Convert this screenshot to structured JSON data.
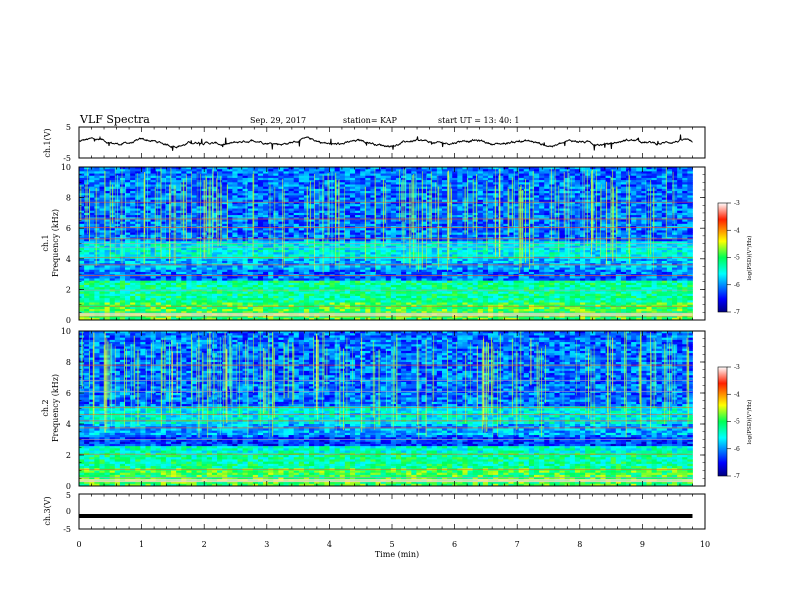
{
  "header": {
    "title": "VLF Spectra",
    "date": "Sep. 29, 2017",
    "station": "station= KAP",
    "start": "start  UT =   13: 40: 1"
  },
  "chart_data": [
    {
      "type": "line",
      "panel": "ch1-waveform",
      "ylabel": "ch.1(V)",
      "yticks": [
        "5",
        "-5"
      ],
      "ylim": [
        -5,
        5
      ],
      "xlim": [
        0,
        10
      ],
      "description_values": "Noisy waveform around 0 V, amplitude roughly within ±1.5 V, ending near 9.8 min"
    },
    {
      "type": "heatmap",
      "panel": "ch1-spectrogram",
      "ylabel": "ch.1\nFrequency (kHz)",
      "ylabel_line1": "ch.1",
      "ylabel_line2": "Frequency (kHz)",
      "yticks": [
        "0",
        "2",
        "4",
        "6",
        "8",
        "10"
      ],
      "ylim": [
        0,
        10
      ],
      "xlim": [
        0,
        9.8
      ],
      "colorbar": {
        "label": "log(PSD)(V²/Hz)",
        "ticks": [
          "-3",
          "-4",
          "-5",
          "-6",
          "-7"
        ],
        "range": [
          -7,
          -3
        ]
      }
    },
    {
      "type": "heatmap",
      "panel": "ch2-spectrogram",
      "ylabel_line1": "ch.2",
      "ylabel_line2": "Frequency (kHz)",
      "yticks": [
        "0",
        "2",
        "4",
        "6",
        "8",
        "10"
      ],
      "ylim": [
        0,
        10
      ],
      "xlim": [
        0,
        9.8
      ],
      "colorbar": {
        "label": "log(PSD)(V²/Hz)",
        "ticks": [
          "-3",
          "-4",
          "-5",
          "-6",
          "-7"
        ],
        "range": [
          -7,
          -3
        ]
      }
    },
    {
      "type": "line",
      "panel": "ch3-waveform",
      "ylabel": "ch.3(V)",
      "yticks": [
        "5",
        "0",
        "-5"
      ],
      "ylim": [
        -5,
        5
      ],
      "xlim": [
        0,
        10
      ],
      "x": [
        0,
        9.8
      ],
      "y": [
        -1.3,
        -1.3
      ]
    }
  ],
  "xaxis": {
    "label": "Time  (min)",
    "ticks": [
      "0",
      "1",
      "2",
      "3",
      "4",
      "5",
      "6",
      "7",
      "8",
      "9",
      "10"
    ]
  }
}
